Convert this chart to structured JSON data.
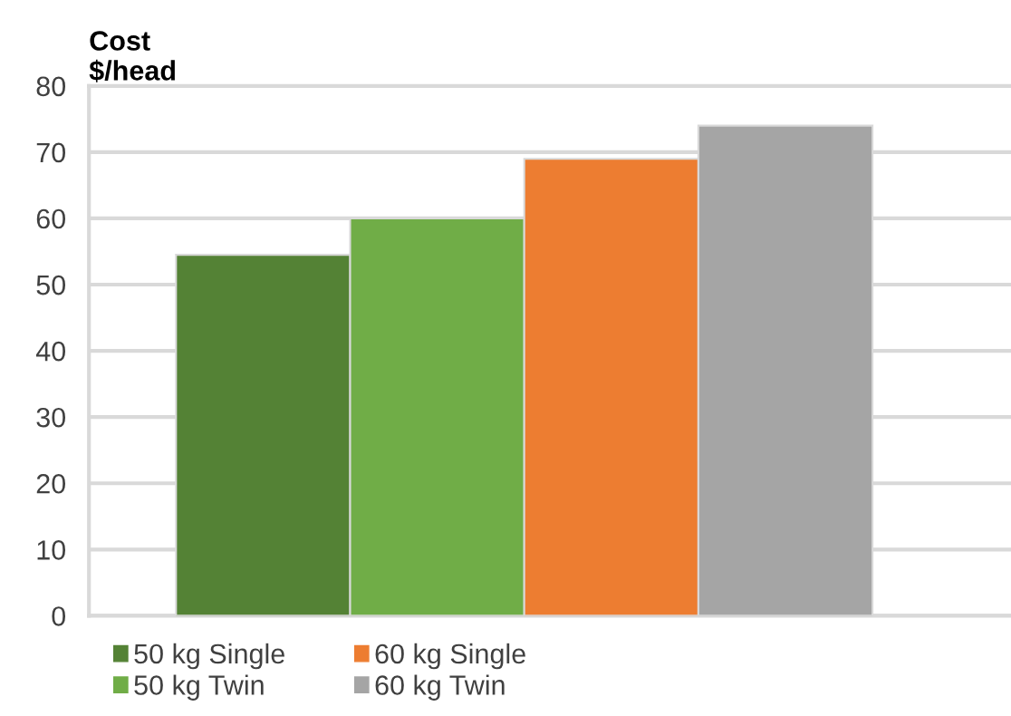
{
  "chart_data": {
    "type": "bar",
    "ylabel": "Cost\n$/head",
    "categories": [
      null
    ],
    "series": [
      {
        "name": "50 kg Single",
        "color": "#548235",
        "values": [
          54.5
        ]
      },
      {
        "name": "50 kg Twin",
        "color": "#70ad47",
        "values": [
          60
        ]
      },
      {
        "name": "60 kg Single",
        "color": "#ed7d31",
        "values": [
          69
        ]
      },
      {
        "name": "60 kg Twin",
        "color": "#a5a5a5",
        "values": [
          74
        ]
      }
    ],
    "ylim": [
      0,
      80
    ],
    "yticks": [
      0,
      10,
      20,
      30,
      40,
      50,
      60,
      70,
      80
    ],
    "grid": "y",
    "legend": "bottom left"
  }
}
